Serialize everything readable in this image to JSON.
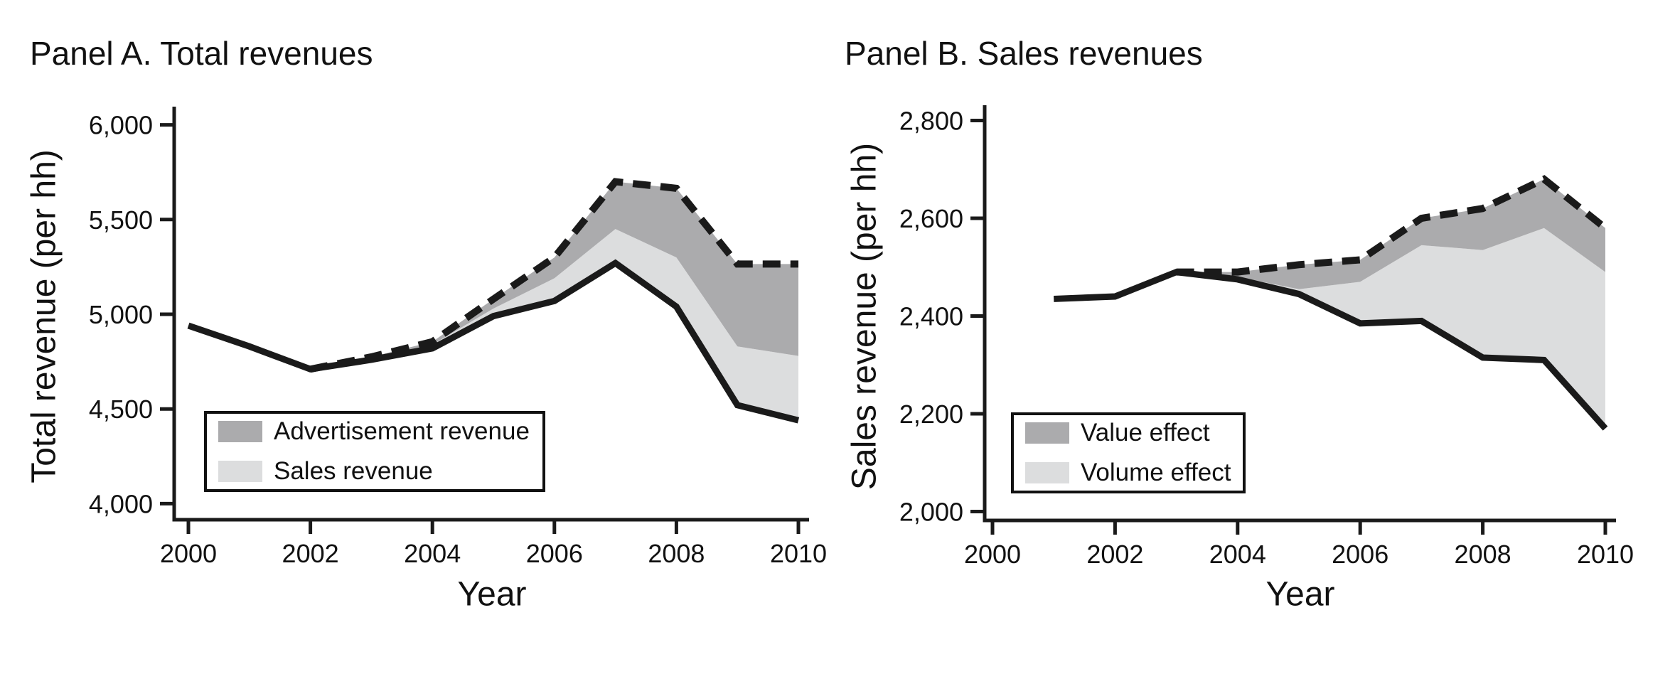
{
  "colors": {
    "dark_gray": "#ababad",
    "light_gray": "#dcddde",
    "line": "#1a1a1a",
    "text": "#111111",
    "background": "#ffffff"
  },
  "panels": [
    {
      "id": "panel-a",
      "title": "Panel A. Total revenues",
      "y_axis_label": "Total revenue (per hh)",
      "x_axis_label": "Year",
      "legend": [
        {
          "label": "Advertisement revenue",
          "color_key": "dark_gray"
        },
        {
          "label": "Sales revenue",
          "color_key": "light_gray"
        }
      ]
    },
    {
      "id": "panel-b",
      "title": "Panel B. Sales revenues",
      "y_axis_label": "Sales revenue (per hh)",
      "x_axis_label": "Year",
      "legend": [
        {
          "label": "Value effect",
          "color_key": "dark_gray"
        },
        {
          "label": "Volume effect",
          "color_key": "light_gray"
        }
      ]
    }
  ],
  "chart_data": [
    {
      "type": "area",
      "title": "Panel A. Total revenues",
      "xlabel": "Year",
      "ylabel": "Total revenue (per hh)",
      "ylim": [
        4000,
        6000
      ],
      "yticks": [
        4000,
        4500,
        5000,
        5500,
        6000
      ],
      "xticks": [
        2000,
        2002,
        2004,
        2006,
        2008,
        2010
      ],
      "grid": false,
      "legend_position": "lower-left-inside",
      "series": [
        {
          "name": "Actual total revenue (solid line)",
          "style": "solid",
          "x": [
            2000,
            2001,
            2002,
            2003,
            2004,
            2005,
            2006,
            2007,
            2008,
            2009,
            2010
          ],
          "values": [
            4940,
            4830,
            4710,
            4760,
            4820,
            4990,
            5070,
            5270,
            5040,
            4520,
            4440
          ]
        },
        {
          "name": "Actual plus sales revenue effect (top of light gray area)",
          "style": "area-boundary",
          "x": [
            2002,
            2003,
            2004,
            2005,
            2006,
            2007,
            2008,
            2009,
            2010
          ],
          "values": [
            4710,
            4770,
            4840,
            5030,
            5190,
            5450,
            5300,
            4830,
            4780
          ]
        },
        {
          "name": "Counterfactual total revenue (dashed line, top of dark gray area)",
          "style": "dashed",
          "x": [
            2002,
            2003,
            2004,
            2005,
            2006,
            2007,
            2008,
            2009,
            2010
          ],
          "values": [
            4710,
            4775,
            4855,
            5080,
            5300,
            5700,
            5665,
            5265,
            5265
          ]
        }
      ]
    },
    {
      "type": "area",
      "title": "Panel B. Sales revenues",
      "xlabel": "Year",
      "ylabel": "Sales revenue (per hh)",
      "ylim": [
        2000,
        2800
      ],
      "yticks": [
        2000,
        2200,
        2400,
        2600,
        2800
      ],
      "xticks": [
        2000,
        2002,
        2004,
        2006,
        2008,
        2010
      ],
      "grid": false,
      "legend_position": "lower-left-inside",
      "series": [
        {
          "name": "Actual sales revenue (solid line)",
          "style": "solid",
          "x": [
            2001,
            2002,
            2003,
            2004,
            2005,
            2006,
            2007,
            2008,
            2009,
            2010
          ],
          "values": [
            2435,
            2440,
            2490,
            2475,
            2445,
            2385,
            2390,
            2315,
            2310,
            2170
          ]
        },
        {
          "name": "Actual plus volume effect (top of light gray area)",
          "style": "area-boundary",
          "x": [
            2003,
            2004,
            2005,
            2006,
            2007,
            2008,
            2009,
            2010
          ],
          "values": [
            2490,
            2480,
            2455,
            2470,
            2545,
            2535,
            2580,
            2490
          ]
        },
        {
          "name": "Counterfactual sales revenue (dashed line, top of dark gray area)",
          "style": "dashed",
          "x": [
            2003,
            2004,
            2005,
            2006,
            2007,
            2008,
            2009,
            2010
          ],
          "values": [
            2490,
            2490,
            2505,
            2515,
            2600,
            2620,
            2680,
            2580
          ]
        }
      ]
    }
  ]
}
